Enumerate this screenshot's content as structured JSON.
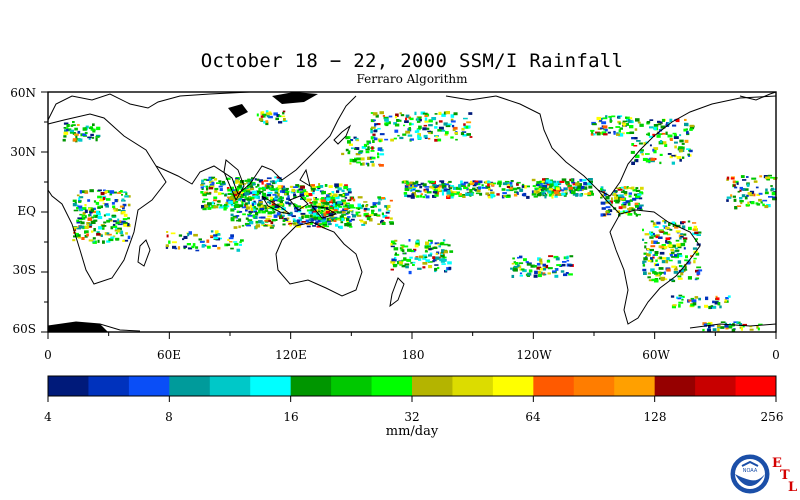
{
  "title": "October 18 − 22, 2000 SSM/I Rainfall",
  "subtitle": "Ferraro Algorithm",
  "lat_axis": [
    "60N",
    "30N",
    "EQ",
    "30S",
    "60S"
  ],
  "lon_axis": [
    "0",
    "60E",
    "120E",
    "180",
    "120W",
    "60W",
    "0"
  ],
  "colorbar": {
    "labels": [
      "4",
      "8",
      "16",
      "32",
      "64",
      "128",
      "256"
    ],
    "units": "mm/day",
    "colors": [
      "#001a7a",
      "#0032bd",
      "#0a4ef7",
      "#009b9b",
      "#00c8c8",
      "#00ffff",
      "#009600",
      "#00c800",
      "#00ff00",
      "#b4b400",
      "#dcdc00",
      "#ffff00",
      "#ff5a00",
      "#ff7d00",
      "#ffa000",
      "#960000",
      "#c80000",
      "#ff0000"
    ]
  },
  "logo": {
    "agency": "NOAA",
    "lab_letters": [
      "E",
      "T",
      "L"
    ]
  }
}
